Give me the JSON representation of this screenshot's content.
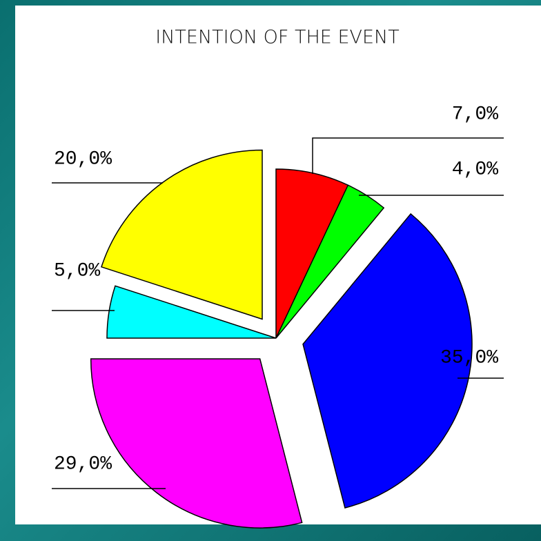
{
  "chart_data": {
    "type": "pie",
    "title": "INTENTION OF THE EVENT",
    "categories": [
      null,
      null,
      null,
      null,
      null,
      null
    ],
    "values": [
      7,
      4,
      35,
      29,
      5,
      20
    ],
    "value_labels": [
      "7,0%",
      "4,0%",
      "35,0%",
      "29,0%",
      "5,0%",
      "20,0%"
    ],
    "colors": [
      "#ff0000",
      "#00ff00",
      "#0000ff",
      "#ff00ff",
      "#00ffff",
      "#ffff00"
    ]
  }
}
